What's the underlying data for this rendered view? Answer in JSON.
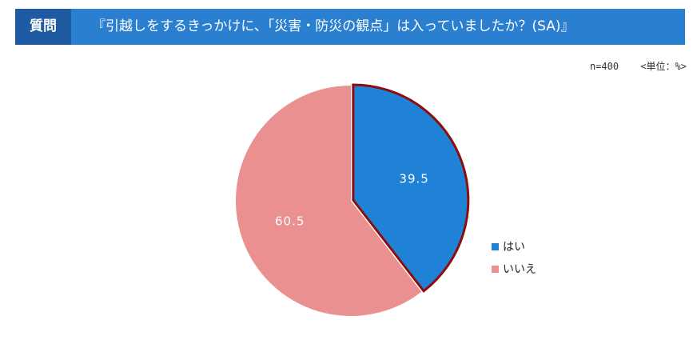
{
  "header": {
    "tag": "質問",
    "question": "『引越しをするきっかけに、「災害・防災の観点」は入っていましたか？(SA)』"
  },
  "meta": {
    "sample": "n=400",
    "unit": "<単位：%>"
  },
  "chart_data": {
    "type": "pie",
    "title": "",
    "slices": [
      {
        "label": "はい",
        "value": 39.5,
        "color": "#2082d6"
      },
      {
        "label": "いいえ",
        "value": 60.5,
        "color": "#eb9090"
      }
    ],
    "start_angle_deg": 0,
    "direction": "clockwise",
    "highlight_outline_color": "#8b0d0d",
    "data_label_color": "#ffffff",
    "legend_position": "right"
  }
}
